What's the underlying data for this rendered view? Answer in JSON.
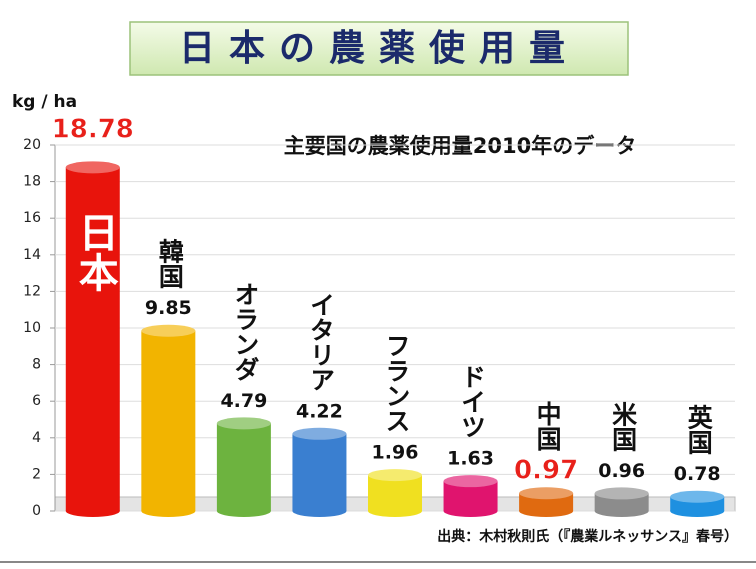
{
  "chart_data": {
    "type": "bar",
    "title": "日本の農薬使用量",
    "subtitle": "主要国の農薬使用量2010年のデータ",
    "y_label": "kg / ha",
    "source": "出典：木村秋則氏（『農業ルネッサンス』春号）",
    "categories": [
      "日本",
      "韓国",
      "オランダ",
      "イタリア",
      "フランス",
      "ドイツ",
      "中国",
      "米国",
      "英国"
    ],
    "values": [
      18.78,
      9.85,
      4.79,
      4.22,
      1.96,
      1.63,
      0.97,
      0.96,
      0.78
    ],
    "colors": [
      "#e8140c",
      "#f2b400",
      "#6db33f",
      "#3a7fd0",
      "#f0e020",
      "#e0146e",
      "#e06a10",
      "#8c8c8c",
      "#1e90e0"
    ],
    "value_label_colors": [
      "#e8201a",
      "#111111",
      "#111111",
      "#111111",
      "#111111",
      "#111111",
      "#e8201a",
      "#111111",
      "#111111"
    ],
    "ylim": [
      0,
      20
    ],
    "yticks": [
      0,
      2,
      4,
      6,
      8,
      10,
      12,
      14,
      16,
      18,
      20
    ],
    "grid": true
  }
}
